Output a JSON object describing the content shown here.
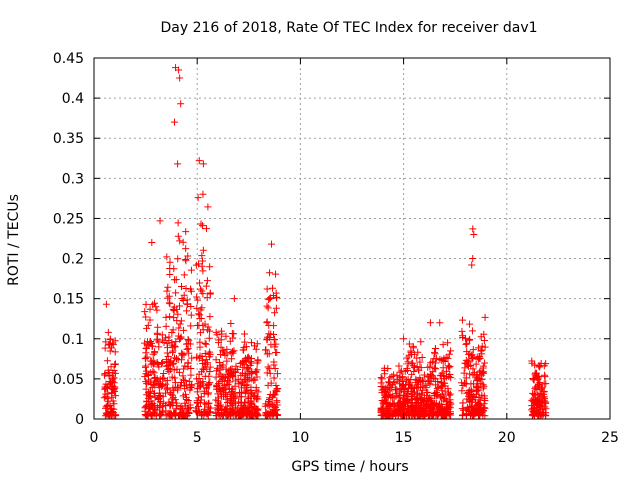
{
  "chart_data": {
    "type": "scatter",
    "title": "Day 216 of 2018, Rate Of TEC Index for receiver dav1",
    "xlabel": "GPS time / hours",
    "ylabel": "ROTI / TECUs",
    "xlim": [
      0,
      25
    ],
    "ylim": [
      0,
      0.45
    ],
    "xticks": [
      0,
      5,
      10,
      15,
      20,
      25
    ],
    "yticks": [
      0,
      0.05,
      0.1,
      0.15,
      0.2,
      0.25,
      0.3,
      0.35,
      0.4,
      0.45
    ],
    "grid": true,
    "legend": false,
    "marker": "+",
    "colors": {
      "series": "#ff0000"
    },
    "clusters": [
      {
        "x": [
          0.5,
          1.05
        ],
        "y_peak": 0.115
      },
      {
        "x": [
          2.45,
          3.4
        ],
        "y_peak": 0.16
      },
      {
        "x": [
          3.45,
          4.75
        ],
        "y_peak": 0.27
      },
      {
        "x": [
          4.9,
          5.65
        ],
        "y_peak": 0.29
      },
      {
        "x": [
          5.9,
          6.7
        ],
        "y_peak": 0.12
      },
      {
        "x": [
          6.7,
          7.95
        ],
        "y_peak": 0.11
      },
      {
        "x": [
          8.3,
          8.9
        ],
        "y_peak": 0.2
      },
      {
        "x": [
          13.9,
          15.1
        ],
        "y_peak": 0.07
      },
      {
        "x": [
          15.1,
          17.3
        ],
        "y_peak": 0.1
      },
      {
        "x": [
          17.8,
          18.95
        ],
        "y_peak": 0.13
      },
      {
        "x": [
          21.2,
          21.9
        ],
        "y_peak": 0.08
      }
    ],
    "outliers": [
      {
        "x": 0.6,
        "y": 0.143
      },
      {
        "x": 2.8,
        "y": 0.22
      },
      {
        "x": 3.2,
        "y": 0.247
      },
      {
        "x": 3.9,
        "y": 0.37
      },
      {
        "x": 3.95,
        "y": 0.438
      },
      {
        "x": 4.1,
        "y": 0.435
      },
      {
        "x": 4.15,
        "y": 0.425
      },
      {
        "x": 4.2,
        "y": 0.393
      },
      {
        "x": 4.05,
        "y": 0.318
      },
      {
        "x": 5.1,
        "y": 0.322
      },
      {
        "x": 5.3,
        "y": 0.318
      },
      {
        "x": 6.8,
        "y": 0.15
      },
      {
        "x": 8.6,
        "y": 0.218
      },
      {
        "x": 8.65,
        "y": 0.163
      },
      {
        "x": 15.0,
        "y": 0.1
      },
      {
        "x": 16.3,
        "y": 0.12
      },
      {
        "x": 16.75,
        "y": 0.12
      },
      {
        "x": 18.35,
        "y": 0.237
      },
      {
        "x": 18.4,
        "y": 0.23
      },
      {
        "x": 18.35,
        "y": 0.2
      },
      {
        "x": 18.3,
        "y": 0.192
      }
    ]
  }
}
